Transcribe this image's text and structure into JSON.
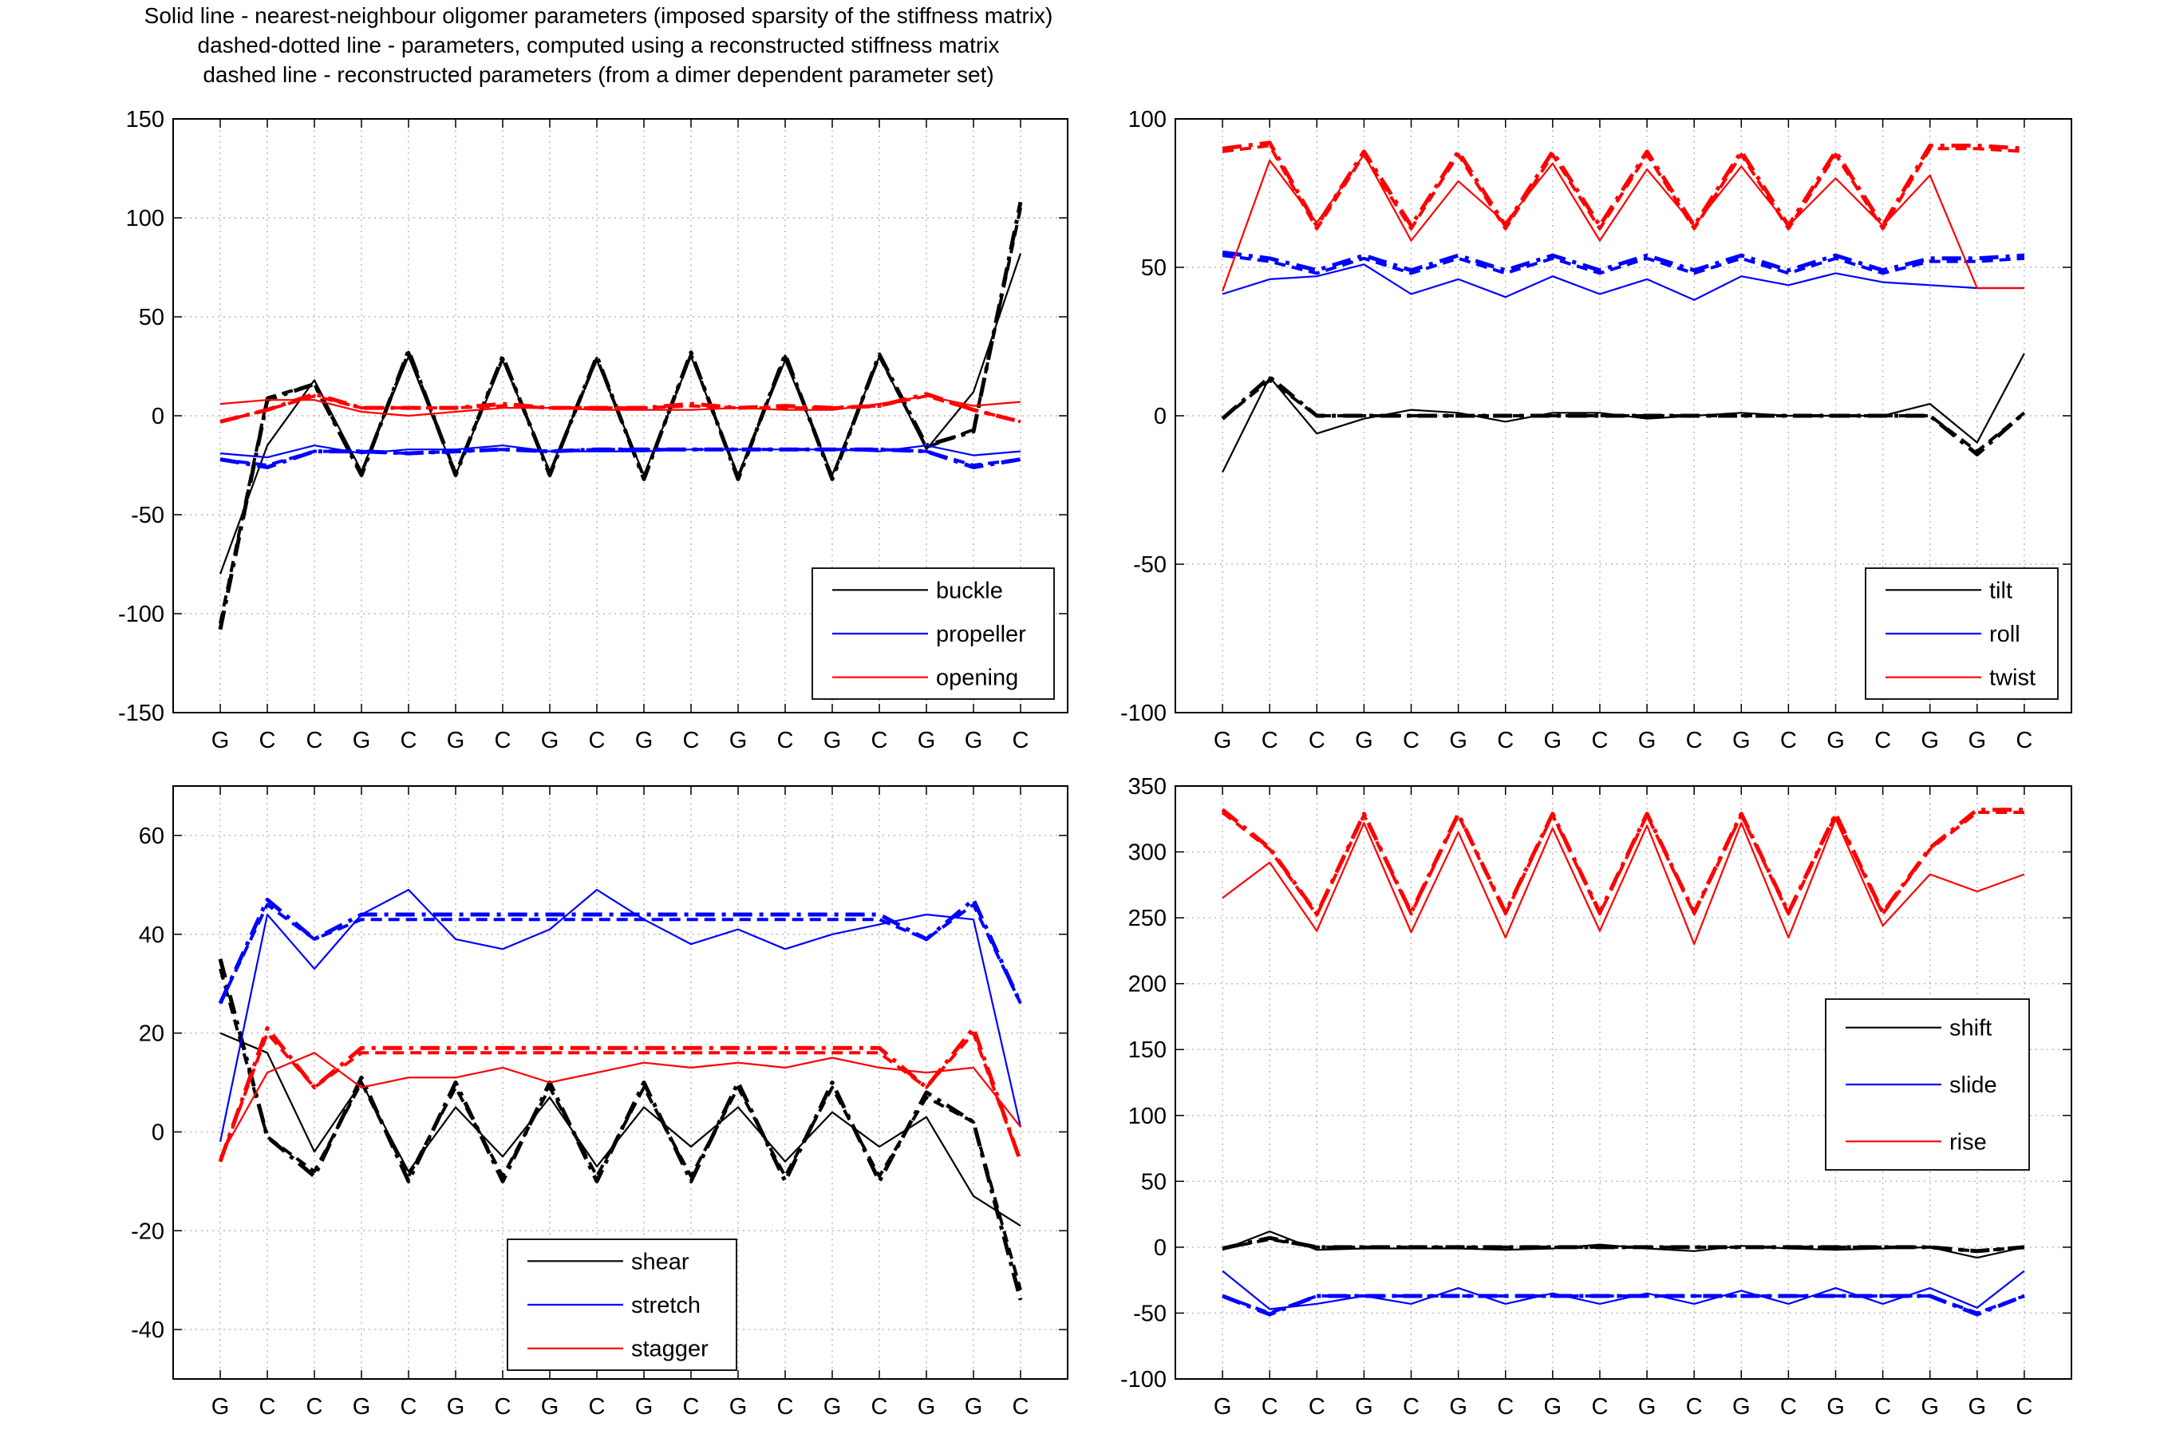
{
  "titles": [
    "Solid line - nearest-neighbour oligomer parameters (imposed sparsity of the stiffness matrix)",
    "dashed-dotted line - parameters, computed using a reconstructed stiffness matrix",
    "dashed line - reconstructed parameters (from a dimer dependent parameter set)"
  ],
  "colors": {
    "black": "#000000",
    "blue": "#0000ff",
    "red": "#ff0000",
    "grid": "#b8b8b8"
  },
  "chart_data": [
    {
      "type": "line",
      "legend_position": "bottom-right",
      "grid": true,
      "categories": [
        "G",
        "C",
        "C",
        "G",
        "C",
        "G",
        "C",
        "G",
        "C",
        "G",
        "C",
        "G",
        "C",
        "G",
        "C",
        "G",
        "G",
        "C"
      ],
      "ylim": [
        -150,
        150
      ],
      "yticks": [
        -150,
        -100,
        -50,
        0,
        50,
        100,
        150
      ],
      "yticklabels": [
        "-150",
        "-100",
        "-50",
        "0",
        "50",
        "100",
        "150"
      ],
      "series": [
        {
          "name": "buckle",
          "color": "black",
          "style": "solid",
          "values": [
            -80,
            -15,
            18,
            -28,
            30,
            -30,
            28,
            -28,
            28,
            -30,
            30,
            -30,
            28,
            -30,
            30,
            -17,
            12,
            82
          ]
        },
        {
          "name": "buckle",
          "color": "black",
          "style": "dashdot",
          "values": [
            -108,
            8,
            16,
            -30,
            33,
            -30,
            30,
            -30,
            30,
            -32,
            32,
            -32,
            31,
            -32,
            31,
            -15,
            -8,
            108
          ]
        },
        {
          "name": "buckle",
          "color": "black",
          "style": "dashed",
          "values": [
            -105,
            9,
            16,
            -29,
            32,
            -29,
            29,
            -29,
            29,
            -31,
            31,
            -31,
            30,
            -31,
            30,
            -16,
            -7,
            105
          ]
        },
        {
          "name": "propeller",
          "color": "blue",
          "style": "solid",
          "values": [
            -19,
            -21,
            -15,
            -19,
            -17,
            -17,
            -15,
            -18,
            -18,
            -18,
            -17,
            -17,
            -17,
            -17,
            -18,
            -15,
            -20,
            -18
          ]
        },
        {
          "name": "propeller",
          "color": "blue",
          "style": "dashdot",
          "values": [
            -22,
            -26,
            -18,
            -18,
            -19,
            -18,
            -17,
            -18,
            -17,
            -17,
            -17,
            -17,
            -17,
            -17,
            -17,
            -18,
            -26,
            -22
          ]
        },
        {
          "name": "propeller",
          "color": "blue",
          "style": "dashed",
          "values": [
            -22,
            -25,
            -18,
            -18,
            -19,
            -18,
            -17,
            -18,
            -17,
            -17,
            -17,
            -17,
            -17,
            -17,
            -17,
            -18,
            -25,
            -22
          ]
        },
        {
          "name": "opening",
          "color": "red",
          "style": "solid",
          "values": [
            6,
            8,
            8,
            2,
            0,
            2,
            4,
            4,
            3,
            3,
            3,
            4,
            3,
            3,
            6,
            10,
            5,
            7
          ]
        },
        {
          "name": "opening",
          "color": "red",
          "style": "dashdot",
          "values": [
            -3,
            3,
            11,
            4,
            4,
            4,
            6,
            4,
            4,
            4,
            6,
            4,
            5,
            4,
            5,
            11,
            3,
            -3
          ]
        },
        {
          "name": "opening",
          "color": "red",
          "style": "dashed",
          "values": [
            -3,
            3,
            10,
            4,
            4,
            4,
            5,
            4,
            4,
            4,
            5,
            4,
            4,
            4,
            5,
            10,
            3,
            -3
          ]
        }
      ],
      "legend": [
        "buckle",
        "propeller",
        "opening"
      ]
    },
    {
      "type": "line",
      "legend_position": "bottom-right",
      "grid": true,
      "categories": [
        "G",
        "C",
        "C",
        "G",
        "C",
        "G",
        "C",
        "G",
        "C",
        "G",
        "C",
        "G",
        "C",
        "G",
        "C",
        "G",
        "G",
        "C"
      ],
      "ylim": [
        -100,
        100
      ],
      "yticks": [
        -100,
        -50,
        0,
        50,
        100
      ],
      "yticklabels": [
        "-100",
        "-50",
        "0",
        "50",
        "100"
      ],
      "series": [
        {
          "name": "tilt",
          "color": "black",
          "style": "solid",
          "values": [
            -19,
            13,
            -6,
            -1,
            2,
            1,
            -2,
            1,
            1,
            -1,
            0,
            1,
            0,
            0,
            0,
            4,
            -9,
            21
          ]
        },
        {
          "name": "tilt",
          "color": "black",
          "style": "dashdot",
          "values": [
            -1,
            13,
            0,
            0,
            0,
            0,
            0,
            0,
            0,
            0,
            0,
            0,
            0,
            0,
            0,
            0,
            -13,
            1
          ]
        },
        {
          "name": "tilt",
          "color": "black",
          "style": "dashed",
          "values": [
            -1,
            12,
            0,
            0,
            0,
            0,
            0,
            0,
            0,
            0,
            0,
            0,
            0,
            0,
            0,
            0,
            -12,
            1
          ]
        },
        {
          "name": "roll",
          "color": "blue",
          "style": "solid",
          "values": [
            41,
            46,
            47,
            51,
            41,
            46,
            40,
            47,
            41,
            46,
            39,
            47,
            44,
            48,
            45,
            44,
            43,
            43
          ]
        },
        {
          "name": "roll",
          "color": "blue",
          "style": "dashdot",
          "values": [
            55,
            53,
            49,
            54,
            49,
            54,
            49,
            54,
            49,
            54,
            49,
            54,
            49,
            54,
            49,
            53,
            53,
            54
          ]
        },
        {
          "name": "roll",
          "color": "blue",
          "style": "dashed",
          "values": [
            54,
            52,
            48,
            53,
            48,
            53,
            48,
            53,
            48,
            53,
            48,
            53,
            48,
            53,
            48,
            52,
            52,
            53
          ]
        },
        {
          "name": "twist",
          "color": "red",
          "style": "solid",
          "values": [
            42,
            86,
            65,
            88,
            59,
            79,
            65,
            85,
            59,
            83,
            64,
            84,
            64,
            80,
            64,
            81,
            43,
            43
          ]
        },
        {
          "name": "twist",
          "color": "red",
          "style": "dashdot",
          "values": [
            90,
            92,
            64,
            89,
            64,
            89,
            64,
            89,
            64,
            89,
            64,
            89,
            64,
            89,
            64,
            91,
            91,
            90
          ]
        },
        {
          "name": "twist",
          "color": "red",
          "style": "dashed",
          "values": [
            89,
            91,
            63,
            88,
            63,
            88,
            63,
            88,
            63,
            88,
            63,
            88,
            63,
            88,
            63,
            90,
            90,
            89
          ]
        }
      ],
      "legend": [
        "tilt",
        "roll",
        "twist"
      ]
    },
    {
      "type": "line",
      "legend_position": "bottom-center",
      "grid": true,
      "categories": [
        "G",
        "C",
        "C",
        "G",
        "C",
        "G",
        "C",
        "G",
        "C",
        "G",
        "C",
        "G",
        "C",
        "G",
        "C",
        "G",
        "G",
        "C"
      ],
      "ylim": [
        -50,
        70
      ],
      "yticks": [
        -40,
        -20,
        0,
        20,
        40,
        60
      ],
      "yticklabels": [
        "-40",
        "-20",
        "0",
        "20",
        "40",
        "60"
      ],
      "series": [
        {
          "name": "shear",
          "color": "black",
          "style": "solid",
          "values": [
            20,
            16,
            -4,
            10,
            -8,
            5,
            -5,
            7,
            -7,
            5,
            -3,
            5,
            -6,
            4,
            -3,
            3,
            -13,
            -19
          ]
        },
        {
          "name": "shear",
          "color": "black",
          "style": "dashdot",
          "values": [
            35,
            -1,
            -9,
            11,
            -10,
            10,
            -10,
            10,
            -10,
            10,
            -10,
            10,
            -10,
            10,
            -10,
            8,
            2,
            -34
          ]
        },
        {
          "name": "shear",
          "color": "black",
          "style": "dashed",
          "values": [
            33,
            -1,
            -8,
            10,
            -9,
            9,
            -9,
            9,
            -9,
            9,
            -9,
            9,
            -9,
            9,
            -9,
            7,
            2,
            -32
          ]
        },
        {
          "name": "stretch",
          "color": "blue",
          "style": "solid",
          "values": [
            -2,
            44,
            33,
            44,
            49,
            39,
            37,
            41,
            49,
            43,
            38,
            41,
            37,
            40,
            42,
            44,
            43,
            1
          ]
        },
        {
          "name": "stretch",
          "color": "blue",
          "style": "dashdot",
          "values": [
            26,
            47,
            39,
            44,
            44,
            44,
            44,
            44,
            44,
            44,
            44,
            44,
            44,
            44,
            44,
            39,
            47,
            26
          ]
        },
        {
          "name": "stretch",
          "color": "blue",
          "style": "dashed",
          "values": [
            26,
            46,
            39,
            43,
            43,
            43,
            43,
            43,
            43,
            43,
            43,
            43,
            43,
            43,
            43,
            39,
            46,
            26
          ]
        },
        {
          "name": "stagger",
          "color": "red",
          "style": "solid",
          "values": [
            -5,
            12,
            16,
            9,
            11,
            11,
            13,
            10,
            12,
            14,
            13,
            14,
            13,
            15,
            13,
            12,
            13,
            1
          ]
        },
        {
          "name": "stagger",
          "color": "red",
          "style": "dashdot",
          "values": [
            -6,
            21,
            9,
            17,
            17,
            17,
            17,
            17,
            17,
            17,
            17,
            17,
            17,
            17,
            17,
            9,
            21,
            -6
          ]
        },
        {
          "name": "stagger",
          "color": "red",
          "style": "dashed",
          "values": [
            -6,
            20,
            9,
            16,
            16,
            16,
            16,
            16,
            16,
            16,
            16,
            16,
            16,
            16,
            16,
            9,
            20,
            -6
          ]
        }
      ],
      "legend": [
        "shear",
        "stretch",
        "stagger"
      ]
    },
    {
      "type": "line",
      "legend_position": "right",
      "grid": true,
      "categories": [
        "G",
        "C",
        "C",
        "G",
        "C",
        "G",
        "C",
        "G",
        "C",
        "G",
        "C",
        "G",
        "C",
        "G",
        "C",
        "G",
        "G",
        "C"
      ],
      "ylim": [
        -100,
        350
      ],
      "yticks": [
        -100,
        -50,
        0,
        50,
        100,
        150,
        200,
        250,
        300,
        350
      ],
      "yticklabels": [
        "-100",
        "-50",
        "0",
        "50",
        "100",
        "150",
        "200",
        "250",
        "300",
        "350"
      ],
      "series": [
        {
          "name": "shift",
          "color": "black",
          "style": "solid",
          "values": [
            -2,
            12,
            -2,
            -1,
            -1,
            -1,
            -2,
            -1,
            2,
            -1,
            -3,
            1,
            -1,
            -2,
            -1,
            0,
            -8,
            0
          ]
        },
        {
          "name": "shift",
          "color": "black",
          "style": "dashdot",
          "values": [
            -1,
            7,
            0,
            0,
            0,
            0,
            0,
            0,
            0,
            0,
            0,
            0,
            0,
            0,
            0,
            0,
            -3,
            0
          ]
        },
        {
          "name": "shift",
          "color": "black",
          "style": "dashed",
          "values": [
            -1,
            6,
            0,
            0,
            0,
            0,
            0,
            0,
            0,
            0,
            0,
            0,
            0,
            0,
            0,
            0,
            -3,
            0
          ]
        },
        {
          "name": "slide",
          "color": "blue",
          "style": "solid",
          "values": [
            -18,
            -47,
            -43,
            -37,
            -43,
            -31,
            -43,
            -35,
            -43,
            -35,
            -43,
            -33,
            -43,
            -31,
            -43,
            -31,
            -46,
            -18
          ]
        },
        {
          "name": "slide",
          "color": "blue",
          "style": "dashdot",
          "values": [
            -37,
            -51,
            -37,
            -37,
            -37,
            -37,
            -37,
            -37,
            -37,
            -37,
            -37,
            -37,
            -37,
            -37,
            -37,
            -37,
            -51,
            -37
          ]
        },
        {
          "name": "slide",
          "color": "blue",
          "style": "dashed",
          "values": [
            -37,
            -50,
            -37,
            -37,
            -37,
            -37,
            -37,
            -37,
            -37,
            -37,
            -37,
            -37,
            -37,
            -37,
            -37,
            -37,
            -50,
            -37
          ]
        },
        {
          "name": "rise",
          "color": "red",
          "style": "solid",
          "values": [
            265,
            292,
            240,
            322,
            239,
            315,
            235,
            318,
            240,
            320,
            230,
            322,
            235,
            325,
            244,
            283,
            270,
            283
          ]
        },
        {
          "name": "rise",
          "color": "red",
          "style": "dashdot",
          "values": [
            332,
            303,
            253,
            329,
            254,
            329,
            254,
            329,
            254,
            329,
            254,
            329,
            254,
            329,
            254,
            303,
            332,
            332
          ]
        },
        {
          "name": "rise",
          "color": "red",
          "style": "dashed",
          "values": [
            330,
            302,
            252,
            328,
            253,
            328,
            253,
            328,
            253,
            328,
            253,
            328,
            253,
            328,
            253,
            302,
            330,
            330
          ]
        }
      ],
      "legend": [
        "shift",
        "slide",
        "rise"
      ]
    }
  ]
}
